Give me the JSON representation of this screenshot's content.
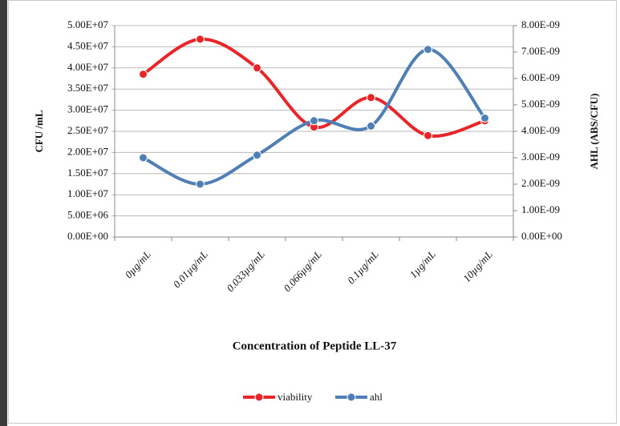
{
  "chart_data": {
    "type": "line",
    "categories": [
      "0µg/mL",
      "0.01µg/mL",
      "0.033µg/mL",
      "0.066µg/mL",
      "0.1µg/mL",
      "1µg/mL",
      "10µg/mL"
    ],
    "series": [
      {
        "name": "viability",
        "color": "#e8262a",
        "values": [
          38500000,
          46800000,
          40000000,
          26000000,
          33000000,
          24000000,
          27500000
        ]
      },
      {
        "name": "ahl",
        "color": "#4f7fb5",
        "axis": "y2",
        "values": [
          3e-09,
          2e-09,
          3.1e-09,
          4.4e-09,
          4.2e-09,
          7.1e-09,
          4.5e-09
        ]
      }
    ],
    "ylabel": "CFU /mL",
    "y2label": "AHL (ABS/CFU)",
    "xlabel": "Concentration of Peptide LL-37",
    "ylim": [
      0,
      50000000
    ],
    "yticks": [
      {
        "value": 0,
        "label": "0.00E+00"
      },
      {
        "value": 5000000,
        "label": "5.00E+06"
      },
      {
        "value": 10000000,
        "label": "1.00E+07"
      },
      {
        "value": 15000000,
        "label": "1.50E+07"
      },
      {
        "value": 20000000,
        "label": "2.00E+07"
      },
      {
        "value": 25000000,
        "label": "2.50E+07"
      },
      {
        "value": 30000000,
        "label": "3.00E+07"
      },
      {
        "value": 35000000,
        "label": "3.50E+07"
      },
      {
        "value": 40000000,
        "label": "4.00E+07"
      },
      {
        "value": 45000000,
        "label": "4.50E+07"
      },
      {
        "value": 50000000,
        "label": "5.00E+07"
      }
    ],
    "y2lim": [
      0,
      8e-09
    ],
    "y2ticks": [
      {
        "value": 0,
        "label": "0.00E+00"
      },
      {
        "value": 1e-09,
        "label": "1.00E-09"
      },
      {
        "value": 2e-09,
        "label": "2.00E-09"
      },
      {
        "value": 3e-09,
        "label": "3.00E-09"
      },
      {
        "value": 4e-09,
        "label": "4.00E-09"
      },
      {
        "value": 5e-09,
        "label": "5.00E-09"
      },
      {
        "value": 6e-09,
        "label": "6.00E-09"
      },
      {
        "value": 7e-09,
        "label": "7.00E-09"
      },
      {
        "value": 8e-09,
        "label": "8.00E-09"
      }
    ],
    "grid": true,
    "smooth": true,
    "legend": "bottom"
  }
}
